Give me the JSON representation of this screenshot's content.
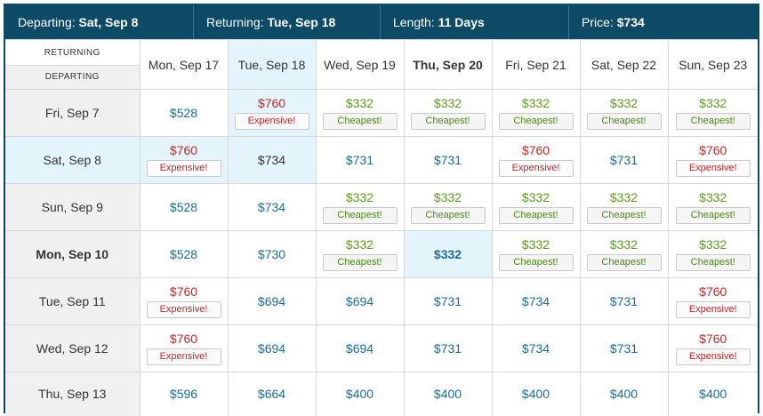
{
  "header": {
    "departing_label": "Departing:",
    "departing_value": "Sat, Sep 8",
    "returning_label": "Returning:",
    "returning_value": "Tue, Sep 18",
    "length_label": "Length:",
    "length_value": "11 Days",
    "price_label": "Price:",
    "price_value": "$734"
  },
  "corner": {
    "returning": "RETURNING",
    "departing": "DEPARTING"
  },
  "badges": {
    "cheap": "Cheapest!",
    "exp": "Expensive!"
  },
  "columns": [
    {
      "label": "Mon, Sep 17",
      "state": ""
    },
    {
      "label": "Tue, Sep 18",
      "state": "sel"
    },
    {
      "label": "Wed, Sep 19",
      "state": ""
    },
    {
      "label": "Thu, Sep 20",
      "state": "bold"
    },
    {
      "label": "Fri, Sep 21",
      "state": ""
    },
    {
      "label": "Sat, Sep 22",
      "state": ""
    },
    {
      "label": "Sun, Sep 23",
      "state": ""
    }
  ],
  "rows": [
    {
      "label": "Fri, Sep 7",
      "state": "",
      "cells": [
        {
          "price": "$528",
          "tag": "",
          "style": "plain"
        },
        {
          "price": "$760",
          "tag": "exp",
          "style": "exp",
          "hl": true
        },
        {
          "price": "$332",
          "tag": "cheap",
          "style": "cheap"
        },
        {
          "price": "$332",
          "tag": "cheap",
          "style": "cheap"
        },
        {
          "price": "$332",
          "tag": "cheap",
          "style": "cheap"
        },
        {
          "price": "$332",
          "tag": "cheap",
          "style": "cheap"
        },
        {
          "price": "$332",
          "tag": "cheap",
          "style": "cheap"
        }
      ]
    },
    {
      "label": "Sat, Sep 8",
      "state": "sel",
      "cells": [
        {
          "price": "$760",
          "tag": "exp",
          "style": "exp",
          "hl": true
        },
        {
          "price": "$734",
          "tag": "",
          "style": "cur",
          "hl": true
        },
        {
          "price": "$731",
          "tag": "",
          "style": "plain"
        },
        {
          "price": "$731",
          "tag": "",
          "style": "plain"
        },
        {
          "price": "$760",
          "tag": "exp",
          "style": "exp"
        },
        {
          "price": "$731",
          "tag": "",
          "style": "plain"
        },
        {
          "price": "$760",
          "tag": "exp",
          "style": "exp"
        }
      ]
    },
    {
      "label": "Sun, Sep 9",
      "state": "",
      "cells": [
        {
          "price": "$528",
          "tag": "",
          "style": "plain"
        },
        {
          "price": "$734",
          "tag": "",
          "style": "plain"
        },
        {
          "price": "$332",
          "tag": "cheap",
          "style": "cheap"
        },
        {
          "price": "$332",
          "tag": "cheap",
          "style": "cheap"
        },
        {
          "price": "$332",
          "tag": "cheap",
          "style": "cheap"
        },
        {
          "price": "$332",
          "tag": "cheap",
          "style": "cheap"
        },
        {
          "price": "$332",
          "tag": "cheap",
          "style": "cheap"
        }
      ]
    },
    {
      "label": "Mon, Sep 10",
      "state": "bold",
      "cells": [
        {
          "price": "$528",
          "tag": "",
          "style": "plain"
        },
        {
          "price": "$730",
          "tag": "",
          "style": "plain"
        },
        {
          "price": "$332",
          "tag": "cheap",
          "style": "cheap"
        },
        {
          "price": "$332",
          "tag": "",
          "style": "sel",
          "hl": true
        },
        {
          "price": "$332",
          "tag": "cheap",
          "style": "cheap"
        },
        {
          "price": "$332",
          "tag": "cheap",
          "style": "cheap"
        },
        {
          "price": "$332",
          "tag": "cheap",
          "style": "cheap"
        }
      ]
    },
    {
      "label": "Tue, Sep 11",
      "state": "",
      "cells": [
        {
          "price": "$760",
          "tag": "exp",
          "style": "exp"
        },
        {
          "price": "$694",
          "tag": "",
          "style": "plain"
        },
        {
          "price": "$694",
          "tag": "",
          "style": "plain"
        },
        {
          "price": "$731",
          "tag": "",
          "style": "plain"
        },
        {
          "price": "$734",
          "tag": "",
          "style": "plain"
        },
        {
          "price": "$731",
          "tag": "",
          "style": "plain"
        },
        {
          "price": "$760",
          "tag": "exp",
          "style": "exp"
        }
      ]
    },
    {
      "label": "Wed, Sep 12",
      "state": "",
      "cells": [
        {
          "price": "$760",
          "tag": "exp",
          "style": "exp"
        },
        {
          "price": "$694",
          "tag": "",
          "style": "plain"
        },
        {
          "price": "$694",
          "tag": "",
          "style": "plain"
        },
        {
          "price": "$731",
          "tag": "",
          "style": "plain"
        },
        {
          "price": "$734",
          "tag": "",
          "style": "plain"
        },
        {
          "price": "$731",
          "tag": "",
          "style": "plain"
        },
        {
          "price": "$760",
          "tag": "exp",
          "style": "exp"
        }
      ]
    },
    {
      "label": "Thu, Sep 13",
      "state": "",
      "cells": [
        {
          "price": "$596",
          "tag": "",
          "style": "plain"
        },
        {
          "price": "$664",
          "tag": "",
          "style": "plain"
        },
        {
          "price": "$400",
          "tag": "",
          "style": "plain"
        },
        {
          "price": "$400",
          "tag": "",
          "style": "plain"
        },
        {
          "price": "$400",
          "tag": "",
          "style": "plain"
        },
        {
          "price": "$400",
          "tag": "",
          "style": "plain"
        },
        {
          "price": "$400",
          "tag": "",
          "style": "plain"
        }
      ]
    }
  ]
}
